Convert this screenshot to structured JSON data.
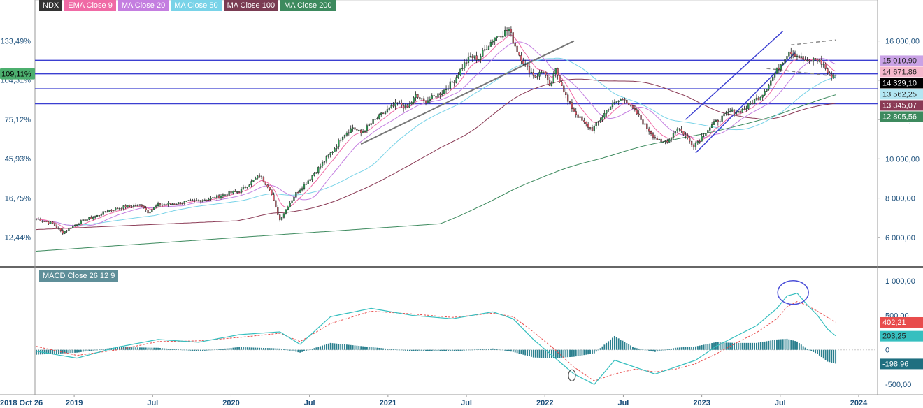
{
  "legend": [
    {
      "label": "NDX",
      "color": "#333333"
    },
    {
      "label": "EMA Close 9",
      "color": "#f06aa5"
    },
    {
      "label": "MA Close 20",
      "color": "#c47ee0"
    },
    {
      "label": "MA Close 50",
      "color": "#79d3e8"
    },
    {
      "label": "MA Close 100",
      "color": "#7a3b52"
    },
    {
      "label": "MA Close 200",
      "color": "#3d8a5e"
    }
  ],
  "macd_label": "MACD Close 26 12 9",
  "chart_data": [
    {
      "type": "candlestick",
      "title": "NDX",
      "y_axis_right": {
        "ticks": [
          "16 000,00",
          "14 000,00",
          "12 000,00",
          "10 000,00",
          "8 000,00",
          "6 000,00"
        ],
        "values": [
          16000,
          14000,
          12000,
          10000,
          8000,
          6000
        ]
      },
      "y_axis_left_percent": {
        "ticks": [
          "133,49%",
          "104,31%",
          "75,12%",
          "45,93%",
          "16,75%",
          "-12,44%"
        ],
        "values": [
          133.49,
          104.31,
          75.12,
          45.93,
          16.75,
          -12.44
        ]
      },
      "left_badge": "109,11%",
      "x_ticks": [
        "2018 Oct 26",
        "2019",
        "Jul",
        "2020",
        "Jul",
        "2021",
        "Jul",
        "2022",
        "Jul",
        "2023",
        "Jul",
        "2024"
      ],
      "ylim": [
        4500,
        17800
      ],
      "horizontal_lines": [
        15010.9,
        14329.1,
        13562.25,
        12805.56
      ],
      "price_labels": [
        {
          "text": "15 010,90",
          "value": 15010.9,
          "color": "#c9a2e6",
          "text_color": "#222222"
        },
        {
          "text": "14 671,86",
          "value": 14671.86,
          "color": "#f5b8cc",
          "text_color": "#222222"
        },
        {
          "text": "14 329,10",
          "value": 14329.1,
          "color": "#000000",
          "text_color": "#ffffff"
        },
        {
          "text": "13 562,25",
          "value": 13562.25,
          "color": "#b3e6f2",
          "text_color": "#222222"
        },
        {
          "text": "13 345,07",
          "value": 13345.07,
          "color": "#8a3a55",
          "text_color": "#ffffff"
        },
        {
          "text": "12 805,56",
          "value": 12805.56,
          "color": "#3d8a5e",
          "text_color": "#ffffff"
        }
      ],
      "series_points": [
        [
          0,
          6950
        ],
        [
          8,
          6700
        ],
        [
          13,
          6250
        ],
        [
          16,
          6450
        ],
        [
          22,
          6800
        ],
        [
          30,
          7100
        ],
        [
          35,
          7350
        ],
        [
          43,
          7550
        ],
        [
          52,
          7650
        ],
        [
          55,
          7300
        ],
        [
          60,
          7650
        ],
        [
          70,
          7750
        ],
        [
          78,
          7850
        ],
        [
          87,
          8000
        ],
        [
          95,
          8250
        ],
        [
          100,
          8350
        ],
        [
          104,
          8650
        ],
        [
          107,
          8900
        ],
        [
          110,
          9150
        ],
        [
          115,
          8500
        ],
        [
          118,
          7500
        ],
        [
          120,
          6900
        ],
        [
          124,
          7600
        ],
        [
          128,
          8250
        ],
        [
          134,
          8900
        ],
        [
          140,
          9650
        ],
        [
          146,
          10400
        ],
        [
          151,
          11200
        ],
        [
          156,
          11600
        ],
        [
          160,
          11300
        ],
        [
          166,
          11900
        ],
        [
          172,
          12400
        ],
        [
          178,
          12800
        ],
        [
          183,
          12600
        ],
        [
          187,
          13200
        ],
        [
          191,
          12900
        ],
        [
          195,
          13100
        ],
        [
          200,
          13400
        ],
        [
          206,
          14000
        ],
        [
          210,
          14700
        ],
        [
          214,
          15200
        ],
        [
          218,
          15100
        ],
        [
          222,
          15700
        ],
        [
          226,
          16200
        ],
        [
          230,
          16400
        ],
        [
          233,
          16600
        ],
        [
          235,
          16000
        ],
        [
          238,
          15300
        ],
        [
          242,
          14600
        ],
        [
          246,
          14200
        ],
        [
          250,
          14500
        ],
        [
          253,
          13600
        ],
        [
          256,
          14500
        ],
        [
          259,
          13800
        ],
        [
          262,
          12900
        ],
        [
          266,
          12300
        ],
        [
          270,
          11800
        ],
        [
          274,
          11500
        ],
        [
          278,
          12000
        ],
        [
          282,
          12600
        ],
        [
          286,
          12900
        ],
        [
          290,
          13100
        ],
        [
          293,
          12600
        ],
        [
          296,
          12300
        ],
        [
          300,
          11700
        ],
        [
          304,
          11200
        ],
        [
          308,
          10800
        ],
        [
          312,
          11000
        ],
        [
          316,
          11600
        ],
        [
          319,
          11300
        ],
        [
          322,
          10900
        ],
        [
          324,
          10700
        ],
        [
          327,
          11000
        ],
        [
          330,
          11400
        ],
        [
          334,
          11800
        ],
        [
          338,
          12100
        ],
        [
          342,
          12400
        ],
        [
          346,
          12400
        ],
        [
          350,
          12600
        ],
        [
          353,
          12900
        ],
        [
          357,
          13200
        ],
        [
          361,
          13800
        ],
        [
          365,
          14500
        ],
        [
          368,
          15000
        ],
        [
          371,
          15500
        ],
        [
          373,
          15400
        ],
        [
          376,
          15200
        ],
        [
          380,
          14900
        ],
        [
          384,
          15100
        ],
        [
          388,
          14800
        ],
        [
          391,
          14200
        ],
        [
          394,
          14300
        ]
      ],
      "total_weeks": 395
    },
    {
      "type": "macd",
      "title": "MACD Close 26 12 9",
      "y_ticks": [
        "1 000,00",
        "500,00",
        "0",
        "-500,00"
      ],
      "y_values": [
        1000,
        500,
        0,
        -500
      ],
      "ylim": [
        -650,
        1100
      ],
      "value_labels": [
        {
          "text": "402,21",
          "value": 402.21,
          "color": "#e84c4c",
          "text_color": "#ffffff"
        },
        {
          "text": "203,25",
          "value": 203.25,
          "color": "#36bfbf",
          "text_color": "#222222"
        },
        {
          "text": "-198,96",
          "value": -198.96,
          "color": "#1f6f80",
          "text_color": "#ffffff"
        }
      ],
      "macd_points": [
        [
          0,
          -20
        ],
        [
          20,
          -120
        ],
        [
          40,
          40
        ],
        [
          60,
          150
        ],
        [
          80,
          110
        ],
        [
          100,
          220
        ],
        [
          120,
          260
        ],
        [
          130,
          80
        ],
        [
          145,
          480
        ],
        [
          165,
          600
        ],
        [
          185,
          500
        ],
        [
          205,
          450
        ],
        [
          225,
          550
        ],
        [
          235,
          450
        ],
        [
          245,
          150
        ],
        [
          255,
          -100
        ],
        [
          265,
          -350
        ],
        [
          275,
          -500
        ],
        [
          285,
          -150
        ],
        [
          295,
          -250
        ],
        [
          305,
          -350
        ],
        [
          315,
          -250
        ],
        [
          325,
          -150
        ],
        [
          335,
          50
        ],
        [
          345,
          200
        ],
        [
          355,
          350
        ],
        [
          365,
          600
        ],
        [
          370,
          780
        ],
        [
          375,
          820
        ],
        [
          380,
          650
        ],
        [
          385,
          500
        ],
        [
          390,
          300
        ],
        [
          394,
          203
        ]
      ],
      "signal_points": [
        [
          0,
          50
        ],
        [
          20,
          -80
        ],
        [
          40,
          0
        ],
        [
          60,
          120
        ],
        [
          80,
          130
        ],
        [
          100,
          180
        ],
        [
          120,
          240
        ],
        [
          130,
          120
        ],
        [
          145,
          380
        ],
        [
          165,
          560
        ],
        [
          185,
          520
        ],
        [
          205,
          470
        ],
        [
          225,
          530
        ],
        [
          235,
          480
        ],
        [
          245,
          260
        ],
        [
          255,
          20
        ],
        [
          265,
          -250
        ],
        [
          275,
          -450
        ],
        [
          285,
          -350
        ],
        [
          295,
          -280
        ],
        [
          305,
          -320
        ],
        [
          315,
          -280
        ],
        [
          325,
          -200
        ],
        [
          335,
          -60
        ],
        [
          345,
          100
        ],
        [
          355,
          250
        ],
        [
          365,
          450
        ],
        [
          370,
          620
        ],
        [
          375,
          700
        ],
        [
          380,
          640
        ],
        [
          385,
          560
        ],
        [
          390,
          470
        ],
        [
          394,
          402
        ]
      ]
    }
  ]
}
